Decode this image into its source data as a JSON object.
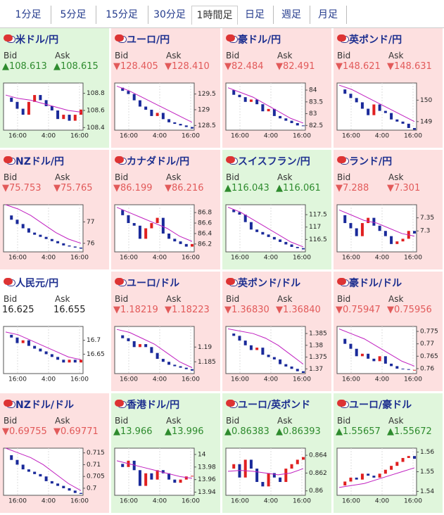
{
  "tabs": [
    "1分足",
    "5分足",
    "15分足",
    "30分足",
    "1時間足",
    "日足",
    "週足",
    "月足"
  ],
  "selected_tab": 4,
  "bid_label": "Bid",
  "ask_label": "Ask",
  "time_labels": [
    "16:00",
    "4:00",
    "16:00"
  ],
  "panels": [
    {
      "title": "米ドル/円",
      "trend": "up",
      "bid": "▲108.613",
      "ask": "▲108.615",
      "ylim": [
        108.37,
        108.92
      ],
      "yticks": [
        108.4,
        108.6,
        108.8
      ],
      "closes": [
        108.75,
        108.7,
        108.62,
        108.55,
        108.7,
        108.78,
        108.72,
        108.65,
        108.6,
        108.5,
        108.55,
        108.48,
        108.55,
        108.61
      ],
      "ma": [
        108.78,
        108.74,
        108.72,
        108.68,
        108.64,
        108.6,
        108.58
      ]
    },
    {
      "title": "ユーロ/円",
      "trend": "down",
      "bid": "▼128.405",
      "ask": "▼128.410",
      "ylim": [
        128.35,
        129.85
      ],
      "yticks": [
        128.5,
        129,
        129.5
      ],
      "closes": [
        129.7,
        129.6,
        129.5,
        129.3,
        129.1,
        129.0,
        128.8,
        128.9,
        128.7,
        128.6,
        128.55,
        128.5,
        128.45,
        128.4
      ],
      "ma": [
        129.75,
        129.6,
        129.4,
        129.2,
        129.0,
        128.8,
        128.6
      ]
    },
    {
      "title": "豪ドル/円",
      "trend": "down",
      "bid": "▼82.484",
      "ask": "▼82.491",
      "ylim": [
        82.3,
        84.3
      ],
      "yticks": [
        82.5,
        83,
        83.5,
        84
      ],
      "closes": [
        84,
        83.8,
        83.7,
        83.5,
        83.6,
        83.4,
        83.1,
        83.2,
        82.9,
        82.8,
        82.7,
        82.6,
        82.5,
        82.48
      ],
      "ma": [
        84.1,
        83.9,
        83.7,
        83.4,
        83.1,
        82.8,
        82.6
      ]
    },
    {
      "title": "英ポンド/円",
      "trend": "down",
      "bid": "▼148.621",
      "ask": "▼148.631",
      "ylim": [
        148.6,
        150.8
      ],
      "yticks": [
        149,
        150
      ],
      "closes": [
        150.5,
        150.3,
        150.1,
        149.9,
        149.6,
        149.3,
        149.8,
        149.5,
        149.4,
        149.1,
        149.0,
        148.9,
        148.7,
        148.62
      ],
      "ma": [
        150.7,
        150.5,
        150.2,
        149.9,
        149.6,
        149.3,
        149.0
      ]
    },
    {
      "title": "NZドル/円",
      "trend": "down",
      "bid": "▼75.753",
      "ask": "▼75.765",
      "ylim": [
        75.6,
        77.8
      ],
      "yticks": [
        76,
        77
      ],
      "closes": [
        77.3,
        77.1,
        76.9,
        76.7,
        76.5,
        76.4,
        76.3,
        76.2,
        76.1,
        76.0,
        75.9,
        75.85,
        75.8,
        75.75
      ],
      "ma": [
        77.8,
        77.6,
        77.3,
        76.9,
        76.5,
        76.2,
        76.0
      ]
    },
    {
      "title": "カナダドル/円",
      "trend": "down",
      "bid": "▼86.199",
      "ask": "▼86.216",
      "ylim": [
        86.05,
        86.95
      ],
      "yticks": [
        86.2,
        86.4,
        86.6,
        86.8
      ],
      "closes": [
        86.85,
        86.75,
        86.6,
        86.55,
        86.3,
        86.5,
        86.6,
        86.7,
        86.4,
        86.3,
        86.25,
        86.2,
        86.15,
        86.2
      ],
      "ma": [
        86.9,
        86.8,
        86.7,
        86.6,
        86.5,
        86.35,
        86.25
      ]
    },
    {
      "title": "スイスフラン/円",
      "trend": "up",
      "bid": "▲116.043",
      "ask": "▲116.061",
      "ylim": [
        116.0,
        117.9
      ],
      "yticks": [
        116.5,
        117,
        117.5
      ],
      "closes": [
        117.7,
        117.6,
        117.5,
        117.2,
        116.9,
        116.8,
        116.7,
        116.6,
        116.5,
        116.4,
        116.3,
        116.2,
        116.15,
        116.1
      ],
      "ma": [
        117.8,
        117.6,
        117.3,
        117.0,
        116.7,
        116.4,
        116.2
      ]
    },
    {
      "title": "ランド/円",
      "trend": "down",
      "bid": "▼7.288",
      "ask": "▼7.301",
      "ylim": [
        7.22,
        7.4
      ],
      "yticks": [
        7.3,
        7.35
      ],
      "closes": [
        7.36,
        7.33,
        7.31,
        7.28,
        7.33,
        7.35,
        7.32,
        7.3,
        7.28,
        7.25,
        7.26,
        7.27,
        7.3,
        7.29
      ],
      "ma": [
        7.38,
        7.36,
        7.34,
        7.33,
        7.31,
        7.29,
        7.28
      ]
    },
    {
      "title": "人民元/円",
      "trend": "flat",
      "bid": "16.625",
      "ask": "16.655",
      "ylim": [
        16.58,
        16.75
      ],
      "yticks": [
        16.65,
        16.7
      ],
      "closes": [
        16.72,
        16.71,
        16.69,
        16.7,
        16.68,
        16.67,
        16.66,
        16.65,
        16.64,
        16.63,
        16.62,
        16.63,
        16.62,
        16.63
      ],
      "ma": [
        16.73,
        16.72,
        16.7,
        16.68,
        16.66,
        16.64,
        16.63
      ]
    },
    {
      "title": "ユーロ/ドル",
      "trend": "down",
      "bid": "▼1.18219",
      "ask": "▼1.18223",
      "ylim": [
        1.181,
        1.197
      ],
      "yticks": [
        1.185,
        1.19
      ],
      "closes": [
        1.194,
        1.193,
        1.192,
        1.19,
        1.191,
        1.19,
        1.188,
        1.186,
        1.185,
        1.184,
        1.1835,
        1.183,
        1.1825,
        1.182
      ],
      "ma": [
        1.196,
        1.195,
        1.193,
        1.191,
        1.188,
        1.185,
        1.183
      ]
    },
    {
      "title": "英ポンド/ドル",
      "trend": "down",
      "bid": "▼1.36830",
      "ask": "▼1.36840",
      "ylim": [
        1.368,
        1.388
      ],
      "yticks": [
        1.37,
        1.375,
        1.38,
        1.385
      ],
      "closes": [
        1.385,
        1.384,
        1.382,
        1.38,
        1.378,
        1.379,
        1.376,
        1.375,
        1.374,
        1.372,
        1.371,
        1.37,
        1.369,
        1.3683
      ],
      "ma": [
        1.387,
        1.386,
        1.385,
        1.383,
        1.38,
        1.376,
        1.372
      ]
    },
    {
      "title": "豪ドル/ドル",
      "trend": "down",
      "bid": "▼0.75947",
      "ask": "▼0.75956",
      "ylim": [
        0.758,
        0.777
      ],
      "yticks": [
        0.76,
        0.765,
        0.77,
        0.775
      ],
      "closes": [
        0.772,
        0.77,
        0.768,
        0.765,
        0.766,
        0.764,
        0.763,
        0.765,
        0.762,
        0.761,
        0.76,
        0.7598,
        0.7595,
        0.7595
      ],
      "ma": [
        0.776,
        0.774,
        0.772,
        0.769,
        0.766,
        0.763,
        0.761
      ]
    },
    {
      "title": "NZドル/ドル",
      "trend": "down",
      "bid": "▼0.69755",
      "ask": "▼0.69771",
      "ylim": [
        0.697,
        0.717
      ],
      "yticks": [
        0.7,
        0.705,
        0.71,
        0.715
      ],
      "closes": [
        0.714,
        0.712,
        0.71,
        0.708,
        0.707,
        0.706,
        0.705,
        0.703,
        0.702,
        0.701,
        0.7,
        0.699,
        0.698,
        0.6976
      ],
      "ma": [
        0.717,
        0.715,
        0.713,
        0.71,
        0.706,
        0.702,
        0.699
      ]
    },
    {
      "title": "香港ドル/円",
      "trend": "up",
      "bid": "▲13.966",
      "ask": "▲13.996",
      "ylim": [
        13.935,
        14.01
      ],
      "yticks": [
        13.94,
        13.96,
        13.98,
        14
      ],
      "closes": [
        13.985,
        13.98,
        13.99,
        13.975,
        13.95,
        13.97,
        13.96,
        13.975,
        13.97,
        13.96,
        13.955,
        13.96,
        13.965,
        13.966
      ],
      "ma": [
        13.99,
        13.985,
        13.98,
        13.975,
        13.97,
        13.965,
        13.962
      ]
    },
    {
      "title": "ユーロ/英ポンド",
      "trend": "up",
      "bid": "▲0.86383",
      "ask": "▲0.86393",
      "ylim": [
        0.8595,
        0.8648
      ],
      "yticks": [
        0.86,
        0.862,
        0.864
      ],
      "closes": [
        0.8625,
        0.863,
        0.8615,
        0.8635,
        0.8625,
        0.861,
        0.8605,
        0.862,
        0.8615,
        0.861,
        0.8625,
        0.863,
        0.8635,
        0.8638
      ],
      "ma": [
        0.8622,
        0.8623,
        0.8622,
        0.862,
        0.8618,
        0.862,
        0.8625
      ]
    },
    {
      "title": "ユーロ/豪ドル",
      "trend": "up",
      "bid": "▲1.55657",
      "ask": "▲1.55672",
      "ylim": [
        1.538,
        1.562
      ],
      "yticks": [
        1.54,
        1.55,
        1.56
      ],
      "closes": [
        1.543,
        1.545,
        1.547,
        1.546,
        1.549,
        1.548,
        1.547,
        1.549,
        1.551,
        1.553,
        1.555,
        1.557,
        1.558,
        1.5566
      ],
      "ma": [
        1.542,
        1.543,
        1.544,
        1.546,
        1.548,
        1.55,
        1.552
      ]
    }
  ]
}
